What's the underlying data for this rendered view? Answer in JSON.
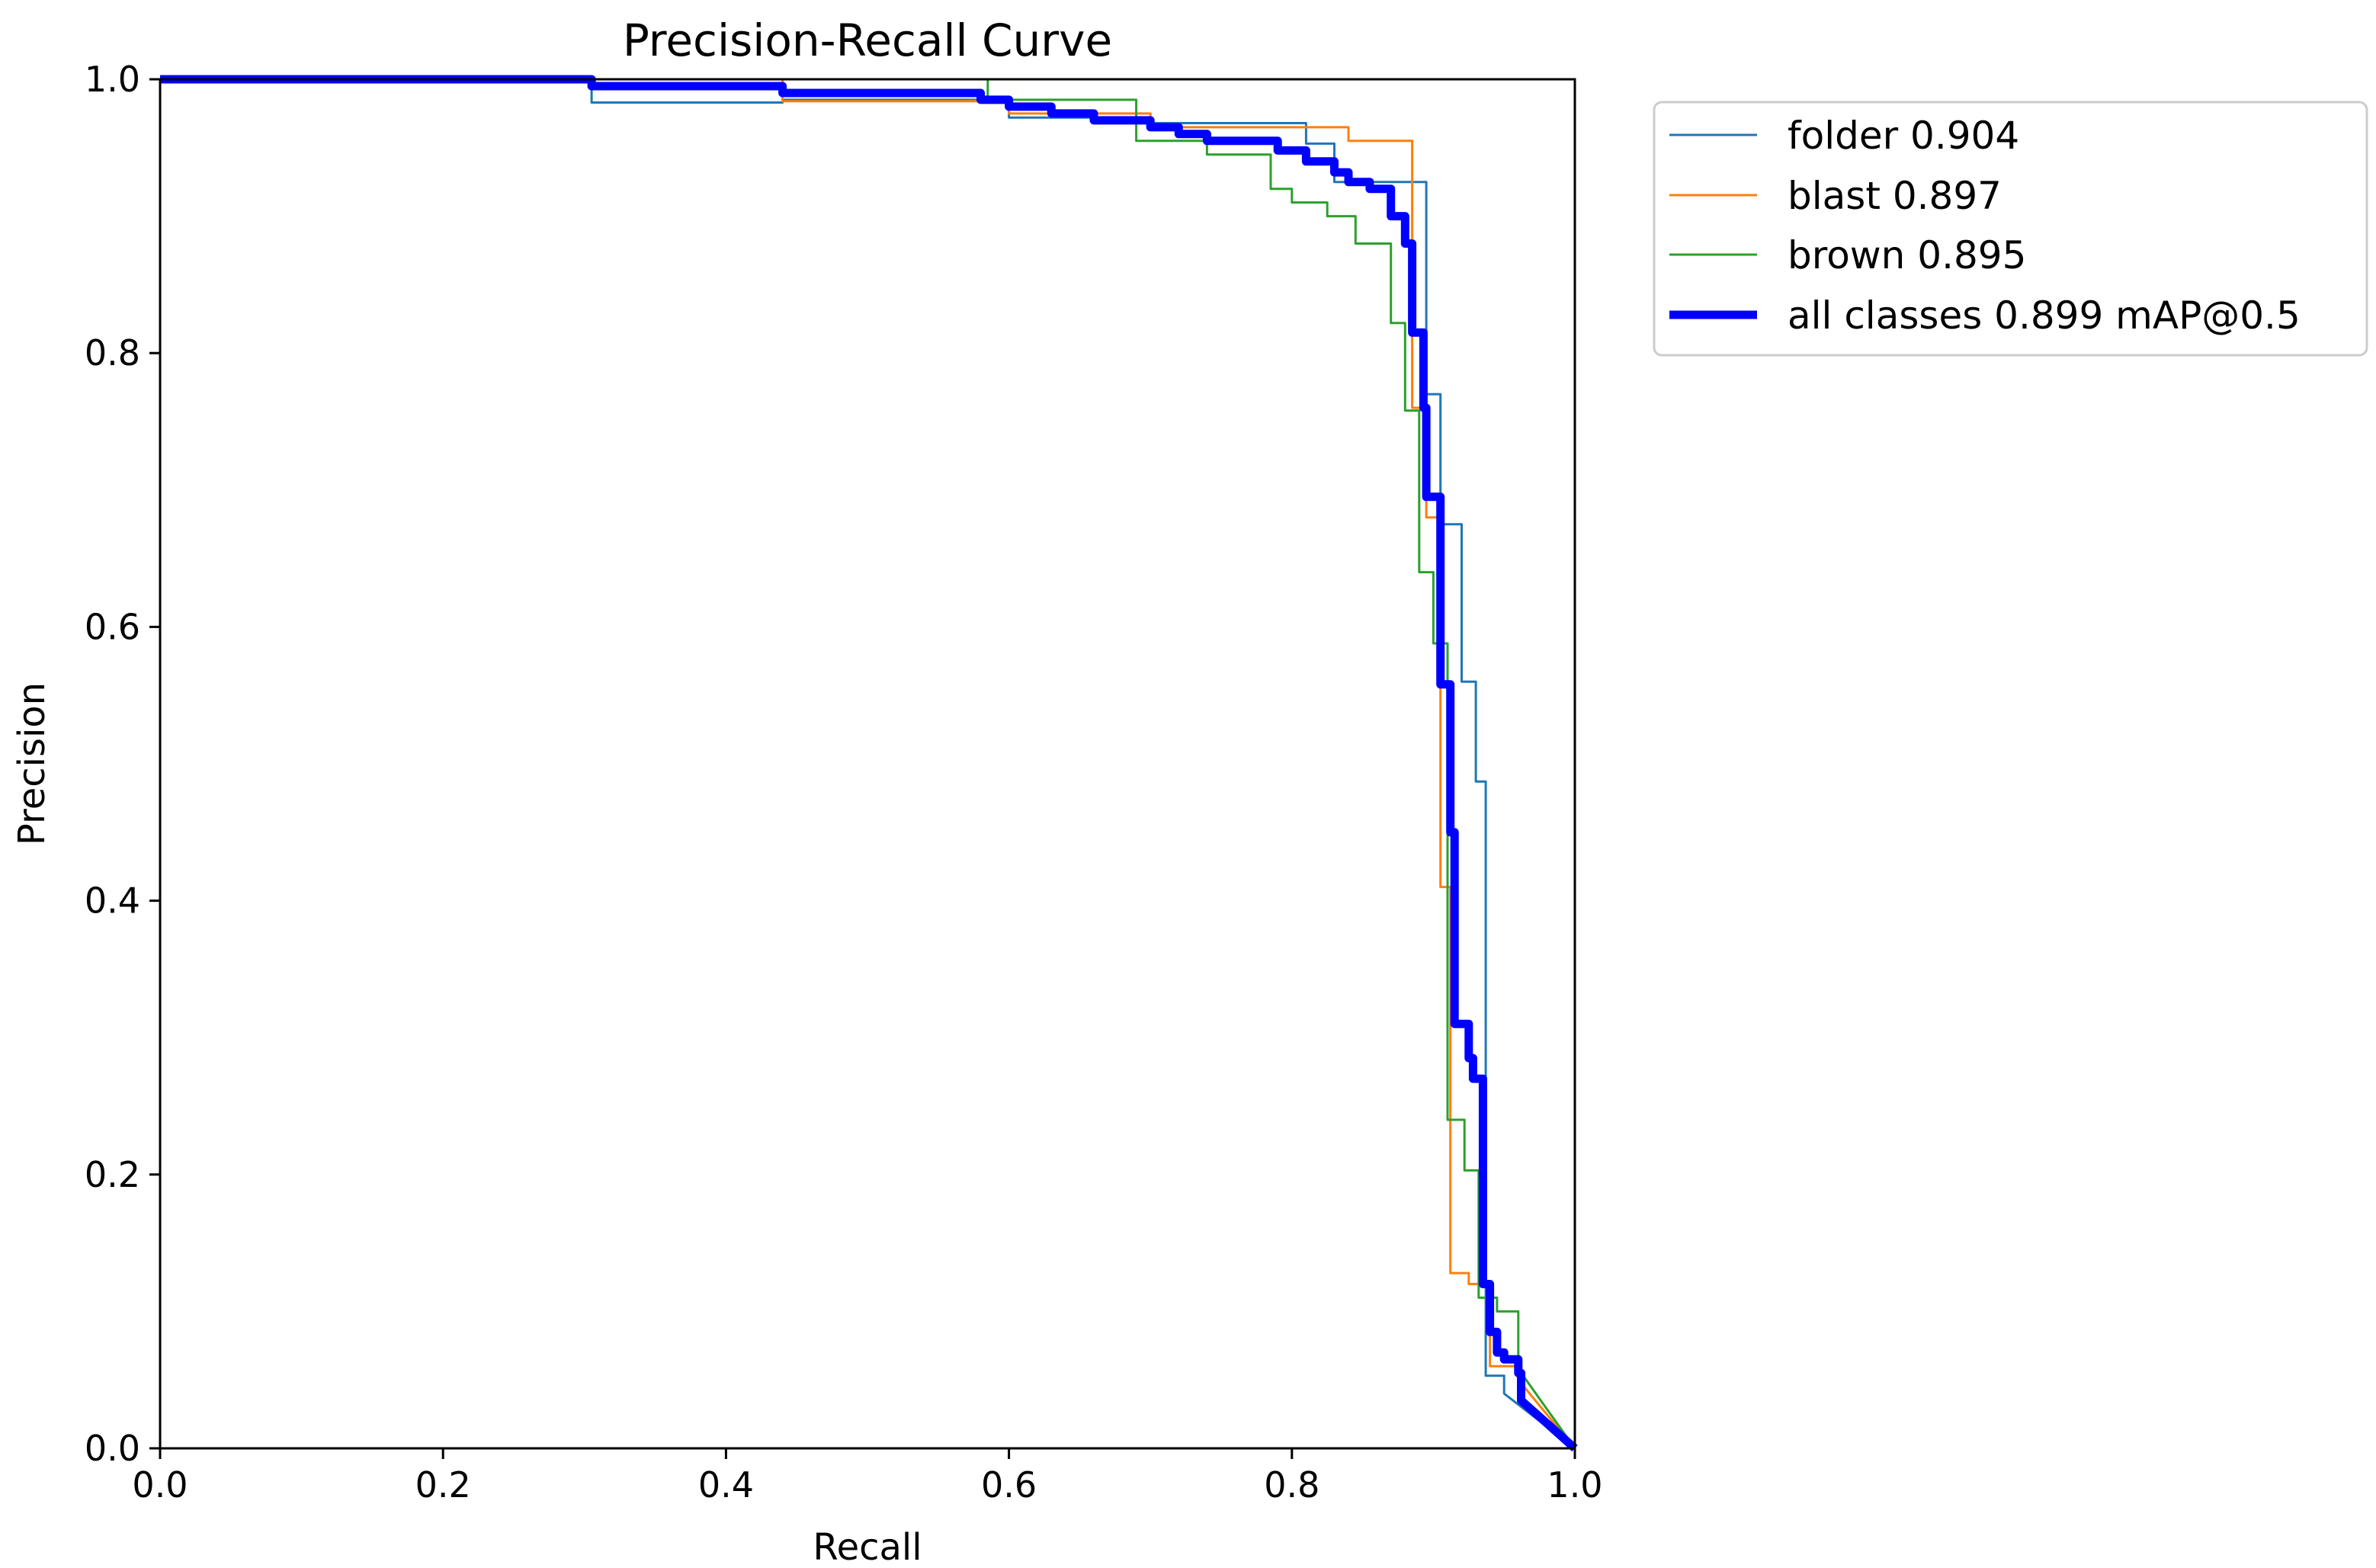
{
  "chart_data": {
    "type": "line",
    "title": "Precision-Recall Curve",
    "xlabel": "Recall",
    "ylabel": "Precision",
    "xlim": [
      0,
      1
    ],
    "ylim": [
      0,
      1
    ],
    "xticks": [
      "0.0",
      "0.2",
      "0.4",
      "0.6",
      "0.8",
      "1.0"
    ],
    "yticks": [
      "0.0",
      "0.2",
      "0.4",
      "0.6",
      "0.8",
      "1.0"
    ],
    "xtick_values": [
      0,
      0.2,
      0.4,
      0.6,
      0.8,
      1.0
    ],
    "ytick_values": [
      0,
      0.2,
      0.4,
      0.6,
      0.8,
      1.0
    ],
    "grid": false,
    "legend_position": "outside-top-right",
    "series": [
      {
        "name": "folder 0.904",
        "color": "#1f77b4",
        "width": "thin",
        "points": [
          [
            0,
            1
          ],
          [
            0.305,
            1
          ],
          [
            0.305,
            0.983
          ],
          [
            0.44,
            0.983
          ],
          [
            0.44,
            0.985
          ],
          [
            0.6,
            0.985
          ],
          [
            0.6,
            0.972
          ],
          [
            0.69,
            0.972
          ],
          [
            0.69,
            0.968
          ],
          [
            0.81,
            0.968
          ],
          [
            0.81,
            0.953
          ],
          [
            0.83,
            0.953
          ],
          [
            0.83,
            0.925
          ],
          [
            0.895,
            0.925
          ],
          [
            0.895,
            0.77
          ],
          [
            0.905,
            0.77
          ],
          [
            0.905,
            0.675
          ],
          [
            0.92,
            0.675
          ],
          [
            0.92,
            0.56
          ],
          [
            0.93,
            0.56
          ],
          [
            0.93,
            0.487
          ],
          [
            0.937,
            0.487
          ],
          [
            0.937,
            0.053
          ],
          [
            0.95,
            0.053
          ],
          [
            0.95,
            0.04
          ],
          [
            1,
            0
          ]
        ]
      },
      {
        "name": "blast 0.897",
        "color": "#ff7f0e",
        "width": "thin",
        "points": [
          [
            0,
            1
          ],
          [
            0.44,
            1
          ],
          [
            0.44,
            0.984
          ],
          [
            0.6,
            0.984
          ],
          [
            0.6,
            0.975
          ],
          [
            0.7,
            0.975
          ],
          [
            0.7,
            0.965
          ],
          [
            0.84,
            0.965
          ],
          [
            0.84,
            0.955
          ],
          [
            0.885,
            0.955
          ],
          [
            0.885,
            0.76
          ],
          [
            0.895,
            0.76
          ],
          [
            0.895,
            0.68
          ],
          [
            0.905,
            0.68
          ],
          [
            0.905,
            0.41
          ],
          [
            0.912,
            0.41
          ],
          [
            0.912,
            0.128
          ],
          [
            0.925,
            0.128
          ],
          [
            0.925,
            0.12
          ],
          [
            0.94,
            0.12
          ],
          [
            0.94,
            0.06
          ],
          [
            0.96,
            0.06
          ],
          [
            0.96,
            0.05
          ],
          [
            1,
            0
          ]
        ]
      },
      {
        "name": "brown 0.895",
        "color": "#2ca02c",
        "width": "thin",
        "points": [
          [
            0,
            1
          ],
          [
            0.585,
            1
          ],
          [
            0.585,
            0.985
          ],
          [
            0.69,
            0.985
          ],
          [
            0.69,
            0.955
          ],
          [
            0.74,
            0.955
          ],
          [
            0.74,
            0.945
          ],
          [
            0.785,
            0.945
          ],
          [
            0.785,
            0.92
          ],
          [
            0.8,
            0.92
          ],
          [
            0.8,
            0.91
          ],
          [
            0.825,
            0.91
          ],
          [
            0.825,
            0.9
          ],
          [
            0.845,
            0.9
          ],
          [
            0.845,
            0.88
          ],
          [
            0.87,
            0.88
          ],
          [
            0.87,
            0.822
          ],
          [
            0.88,
            0.822
          ],
          [
            0.88,
            0.758
          ],
          [
            0.89,
            0.758
          ],
          [
            0.89,
            0.64
          ],
          [
            0.9,
            0.64
          ],
          [
            0.9,
            0.588
          ],
          [
            0.91,
            0.588
          ],
          [
            0.91,
            0.24
          ],
          [
            0.922,
            0.24
          ],
          [
            0.922,
            0.203
          ],
          [
            0.932,
            0.203
          ],
          [
            0.932,
            0.11
          ],
          [
            0.945,
            0.11
          ],
          [
            0.945,
            0.1
          ],
          [
            0.96,
            0.1
          ],
          [
            0.96,
            0.058
          ],
          [
            1,
            0
          ]
        ]
      },
      {
        "name": "all classes 0.899 mAP@0.5",
        "color": "#0000ff",
        "width": "thick",
        "points": [
          [
            0,
            1
          ],
          [
            0.305,
            1
          ],
          [
            0.305,
            0.995
          ],
          [
            0.44,
            0.995
          ],
          [
            0.44,
            0.99
          ],
          [
            0.58,
            0.99
          ],
          [
            0.58,
            0.985
          ],
          [
            0.6,
            0.985
          ],
          [
            0.6,
            0.98
          ],
          [
            0.63,
            0.98
          ],
          [
            0.63,
            0.975
          ],
          [
            0.66,
            0.975
          ],
          [
            0.66,
            0.97
          ],
          [
            0.7,
            0.97
          ],
          [
            0.7,
            0.965
          ],
          [
            0.72,
            0.965
          ],
          [
            0.72,
            0.96
          ],
          [
            0.74,
            0.96
          ],
          [
            0.74,
            0.955
          ],
          [
            0.79,
            0.955
          ],
          [
            0.79,
            0.948
          ],
          [
            0.81,
            0.948
          ],
          [
            0.81,
            0.94
          ],
          [
            0.83,
            0.94
          ],
          [
            0.83,
            0.932
          ],
          [
            0.84,
            0.932
          ],
          [
            0.84,
            0.925
          ],
          [
            0.855,
            0.925
          ],
          [
            0.855,
            0.92
          ],
          [
            0.87,
            0.92
          ],
          [
            0.87,
            0.9
          ],
          [
            0.88,
            0.9
          ],
          [
            0.88,
            0.88
          ],
          [
            0.885,
            0.88
          ],
          [
            0.885,
            0.815
          ],
          [
            0.893,
            0.815
          ],
          [
            0.893,
            0.76
          ],
          [
            0.895,
            0.76
          ],
          [
            0.895,
            0.695
          ],
          [
            0.905,
            0.695
          ],
          [
            0.905,
            0.558
          ],
          [
            0.912,
            0.558
          ],
          [
            0.912,
            0.45
          ],
          [
            0.915,
            0.45
          ],
          [
            0.915,
            0.31
          ],
          [
            0.925,
            0.31
          ],
          [
            0.925,
            0.285
          ],
          [
            0.928,
            0.285
          ],
          [
            0.928,
            0.27
          ],
          [
            0.935,
            0.27
          ],
          [
            0.935,
            0.12
          ],
          [
            0.94,
            0.12
          ],
          [
            0.94,
            0.085
          ],
          [
            0.945,
            0.085
          ],
          [
            0.945,
            0.07
          ],
          [
            0.95,
            0.07
          ],
          [
            0.95,
            0.065
          ],
          [
            0.96,
            0.065
          ],
          [
            0.96,
            0.055
          ],
          [
            0.962,
            0.055
          ],
          [
            0.962,
            0.035
          ],
          [
            1,
            0
          ]
        ]
      }
    ]
  }
}
